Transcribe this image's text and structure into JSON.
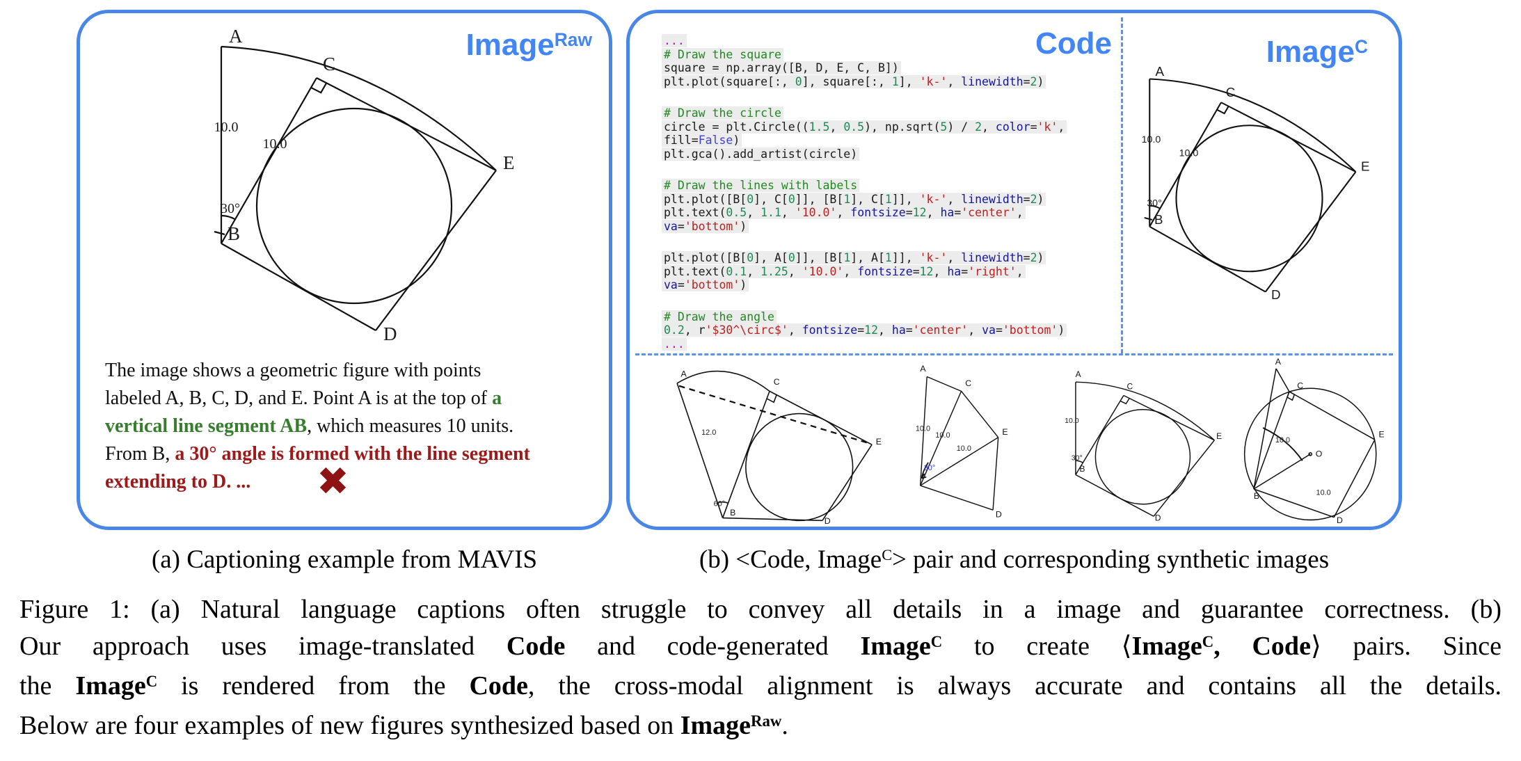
{
  "panel_a": {
    "header": [
      [
        "Image",
        "r"
      ],
      [
        "Raw",
        "sup"
      ]
    ],
    "figure_labels": {
      "a": "A",
      "b": "B",
      "c": "C",
      "d": "D",
      "e": "E",
      "ab_len": "10.0",
      "bc_len": "10.0",
      "angle_b": "30°"
    },
    "caption_lines": [
      [
        [
          "The image shows a geometric figure with points",
          "r"
        ]
      ],
      [
        [
          "labeled A, B, C, D, and E. Point A is at the top of ",
          "r"
        ],
        [
          "a",
          "g"
        ]
      ],
      [
        [
          "vertical line segment AB",
          "g"
        ],
        [
          ", which measures 10 units.",
          "r"
        ]
      ],
      [
        [
          "From B, ",
          "r"
        ],
        [
          "a 30° angle is formed with the line segment",
          "d"
        ]
      ],
      [
        [
          "extending to D. ...",
          "d"
        ]
      ]
    ],
    "cross_mark": "✖"
  },
  "panel_b": {
    "code_header": "Code",
    "imagec_header": [
      [
        "Image",
        "r"
      ],
      [
        "C",
        "sup"
      ]
    ],
    "code_lines": [
      [
        [
          "...",
          "pu"
        ]
      ],
      [
        [
          "# Draw the square",
          "cm"
        ]
      ],
      [
        [
          "square = np.array([B, D, E, C, B])",
          "pl"
        ]
      ],
      [
        [
          "plt.plot(square[:, ",
          "pl"
        ],
        [
          "0",
          "nu"
        ],
        [
          "], square[:, ",
          "pl"
        ],
        [
          "1",
          "nu"
        ],
        [
          "], ",
          "pl"
        ],
        [
          "'k-'",
          "st"
        ],
        [
          ", ",
          "pl"
        ],
        [
          "linewidth",
          "kw"
        ],
        [
          "=",
          "pl"
        ],
        [
          "2",
          "nu"
        ],
        [
          ")",
          "pl"
        ]
      ],
      [],
      [
        [
          "# Draw the circle",
          "cm"
        ]
      ],
      [
        [
          "circle = plt.Circle((",
          "pl"
        ],
        [
          "1.5",
          "nu"
        ],
        [
          ", ",
          "pl"
        ],
        [
          "0.5",
          "nu"
        ],
        [
          "), np.sqrt(",
          "pl"
        ],
        [
          "5",
          "nu"
        ],
        [
          ") / ",
          "pl"
        ],
        [
          "2",
          "nu"
        ],
        [
          ", ",
          "pl"
        ],
        [
          "color",
          "kw"
        ],
        [
          "=",
          "pl"
        ],
        [
          "'k'",
          "st"
        ],
        [
          ",",
          "pl"
        ]
      ],
      [
        [
          "fill",
          "pl"
        ],
        [
          "=",
          "pl"
        ],
        [
          "False",
          "kc"
        ],
        [
          ")",
          "pl"
        ]
      ],
      [
        [
          "plt.gca().add_artist(circle)",
          "pl"
        ]
      ],
      [],
      [
        [
          "# Draw the lines with labels",
          "cm"
        ]
      ],
      [
        [
          "plt.plot([B[",
          "pl"
        ],
        [
          "0",
          "nu"
        ],
        [
          "], C[",
          "pl"
        ],
        [
          "0",
          "nu"
        ],
        [
          "]], [B[",
          "pl"
        ],
        [
          "1",
          "nu"
        ],
        [
          "], C[",
          "pl"
        ],
        [
          "1",
          "nu"
        ],
        [
          "]], ",
          "pl"
        ],
        [
          "'k-'",
          "st"
        ],
        [
          ", ",
          "pl"
        ],
        [
          "linewidth",
          "kw"
        ],
        [
          "=",
          "pl"
        ],
        [
          "2",
          "nu"
        ],
        [
          ")",
          "pl"
        ]
      ],
      [
        [
          "plt.text(",
          "pl"
        ],
        [
          "0.5",
          "nu"
        ],
        [
          ", ",
          "pl"
        ],
        [
          "1.1",
          "nu"
        ],
        [
          ", ",
          "pl"
        ],
        [
          "'10.0'",
          "st"
        ],
        [
          ", ",
          "pl"
        ],
        [
          "fontsize",
          "kw"
        ],
        [
          "=",
          "pl"
        ],
        [
          "12",
          "nu"
        ],
        [
          ", ",
          "pl"
        ],
        [
          "ha",
          "kw"
        ],
        [
          "=",
          "pl"
        ],
        [
          "'center'",
          "st"
        ],
        [
          ",",
          "pl"
        ]
      ],
      [
        [
          "va",
          "kw"
        ],
        [
          "=",
          "pl"
        ],
        [
          "'bottom'",
          "st"
        ],
        [
          ")",
          "pl"
        ]
      ],
      [],
      [
        [
          "plt.plot([B[",
          "pl"
        ],
        [
          "0",
          "nu"
        ],
        [
          "], A[",
          "pl"
        ],
        [
          "0",
          "nu"
        ],
        [
          "]], [B[",
          "pl"
        ],
        [
          "1",
          "nu"
        ],
        [
          "], A[",
          "pl"
        ],
        [
          "1",
          "nu"
        ],
        [
          "]], ",
          "pl"
        ],
        [
          "'k-'",
          "st"
        ],
        [
          ", ",
          "pl"
        ],
        [
          "linewidth",
          "kw"
        ],
        [
          "=",
          "pl"
        ],
        [
          "2",
          "nu"
        ],
        [
          ")",
          "pl"
        ]
      ],
      [
        [
          "plt.text(",
          "pl"
        ],
        [
          "0.1",
          "nu"
        ],
        [
          ", ",
          "pl"
        ],
        [
          "1.25",
          "nu"
        ],
        [
          ", ",
          "pl"
        ],
        [
          "'10.0'",
          "st"
        ],
        [
          ", ",
          "pl"
        ],
        [
          "fontsize",
          "kw"
        ],
        [
          "=",
          "pl"
        ],
        [
          "12",
          "nu"
        ],
        [
          ", ",
          "pl"
        ],
        [
          "ha",
          "kw"
        ],
        [
          "=",
          "pl"
        ],
        [
          "'right'",
          "st"
        ],
        [
          ",",
          "pl"
        ]
      ],
      [
        [
          "va",
          "kw"
        ],
        [
          "=",
          "pl"
        ],
        [
          "'bottom'",
          "st"
        ],
        [
          ")",
          "pl"
        ]
      ],
      [],
      [
        [
          "# Draw the angle",
          "cm"
        ]
      ],
      [
        [
          "0.2",
          "nu"
        ],
        [
          ", r",
          "pl"
        ],
        [
          "'$30^\\circ$'",
          "st"
        ],
        [
          ", ",
          "pl"
        ],
        [
          "fontsize",
          "kw"
        ],
        [
          "=",
          "pl"
        ],
        [
          "12",
          "nu"
        ],
        [
          ", ",
          "pl"
        ],
        [
          "ha",
          "kw"
        ],
        [
          "=",
          "pl"
        ],
        [
          "'center'",
          "st"
        ],
        [
          ", ",
          "pl"
        ],
        [
          "va",
          "kw"
        ],
        [
          "=",
          "pl"
        ],
        [
          "'bottom'",
          "st"
        ],
        [
          ")",
          "pl"
        ]
      ],
      [
        [
          "...",
          "pu"
        ]
      ]
    ],
    "imagec_figure_labels": {
      "a": "A",
      "b": "B",
      "c": "C",
      "d": "D",
      "e": "E",
      "ab_len": "10.0",
      "bc_len": "10.0",
      "angle_b": "30°"
    },
    "thumb1_labels": {
      "a": "A",
      "b": "B",
      "c": "C",
      "d": "D",
      "e": "E",
      "ab_len": "12.0",
      "angle_b": "60°"
    },
    "thumb2_labels": {
      "a": "A",
      "c": "C",
      "e": "E",
      "d": "D",
      "l1": "10.0",
      "l2": "10.0",
      "l3": "10.0",
      "angle": "30°"
    },
    "thumb3_labels": {
      "a": "A",
      "b": "B",
      "c": "C",
      "d": "D",
      "e": "E",
      "l1": "10.0",
      "angle": "30°"
    },
    "thumb4_labels": {
      "a": "A",
      "b": "B",
      "c": "C",
      "d": "D",
      "e": "E",
      "o": "O",
      "l1": "10.0",
      "l2": "10.0"
    }
  },
  "subcaptions": {
    "a": [
      [
        "(a) Captioning example from MAVIS",
        "r"
      ]
    ],
    "b": [
      [
        "(b) <Code, Image",
        "r"
      ],
      [
        "C",
        "sup"
      ],
      [
        "> pair and corresponding synthetic images",
        "r"
      ]
    ]
  },
  "figure_caption": {
    "line1": [
      [
        "Figure 1: (a) Natural language captions often struggle to convey all details in a image and guarantee correctness. (b)",
        "r"
      ]
    ],
    "line2": [
      [
        "Our approach uses image-translated ",
        "r"
      ],
      [
        "Code",
        "b"
      ],
      [
        " and code-generated ",
        "r"
      ],
      [
        "Image",
        "b"
      ],
      [
        "C",
        "bsup"
      ],
      [
        " to create ",
        "r"
      ],
      [
        "⟨",
        "r"
      ],
      [
        "Image",
        "b"
      ],
      [
        "C",
        "bsup"
      ],
      [
        ", Code",
        "b"
      ],
      [
        "⟩",
        "r"
      ],
      [
        " pairs. Since",
        "r"
      ]
    ],
    "line3": [
      [
        "the ",
        "r"
      ],
      [
        "Image",
        "b"
      ],
      [
        "C",
        "bsup"
      ],
      [
        " is rendered from the ",
        "r"
      ],
      [
        "Code",
        "b"
      ],
      [
        ", the cross-modal alignment is always accurate and contains all the details.",
        "r"
      ]
    ],
    "line4": [
      [
        "Below are four examples of new figures synthesized based on ",
        "r"
      ],
      [
        "Image",
        "b"
      ],
      [
        "Raw",
        "bsup"
      ],
      [
        ".",
        "r"
      ]
    ]
  }
}
